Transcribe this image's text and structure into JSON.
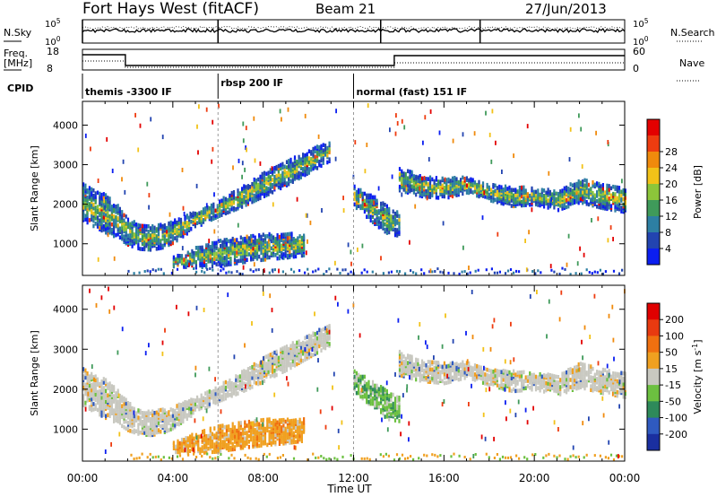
{
  "header": {
    "station": "Fort Hays West (fitACF)",
    "beam": "Beam 21",
    "date": "27/Jun/2013"
  },
  "noise_panel": {
    "left_label": "N.Sky",
    "right_label": "N.Search",
    "left_ticks": [
      "10^5",
      "10^0"
    ],
    "right_ticks": [
      "10^5",
      "10^0"
    ]
  },
  "freq_panel": {
    "left_label_1": "Freq.",
    "left_label_2": "[MHz]",
    "right_label": "Nave",
    "left_ticks": [
      "18",
      "8"
    ],
    "right_ticks": [
      "60",
      "0"
    ]
  },
  "cpid": {
    "label": "CPID",
    "segments": [
      {
        "text": "themis -3300 IF",
        "start": 0,
        "end": 6
      },
      {
        "text": "rbsp 200 IF",
        "start": 6,
        "end": 12
      },
      {
        "text": "normal (fast) 151 IF",
        "start": 12,
        "end": 24
      }
    ]
  },
  "chart_data": [
    {
      "type": "heatmap",
      "title": "Power",
      "ylabel": "Slant Range [km]",
      "xlabel": "Time UT",
      "xlim": [
        0,
        24
      ],
      "ylim": [
        200,
        4600
      ],
      "yticks": [
        1000,
        2000,
        3000,
        4000
      ],
      "xticks": [
        "00:00",
        "04:00",
        "08:00",
        "12:00",
        "16:00",
        "20:00",
        "00:00"
      ],
      "colorbar": {
        "label": "Power [dB]",
        "ticks": [
          "4",
          "8",
          "12",
          "16",
          "20",
          "24",
          "28"
        ],
        "colors": [
          "#0b1ef0",
          "#2244b0",
          "#2d7fa3",
          "#3f9a5a",
          "#8cc63a",
          "#f2c218",
          "#f08a0c",
          "#ee3c10",
          "#e30000"
        ]
      },
      "bands": [
        {
          "name": "main",
          "x": [
            0,
            0.5,
            1,
            1.5,
            2,
            2.5,
            3,
            3.5,
            4,
            5,
            6,
            7,
            8,
            9,
            10,
            10.9
          ],
          "y": [
            2050,
            1880,
            1760,
            1580,
            1320,
            1170,
            1150,
            1200,
            1310,
            1620,
            1900,
            2180,
            2500,
            2780,
            3080,
            3350
          ],
          "width": [
            450,
            450,
            480,
            420,
            350,
            300,
            300,
            300,
            280,
            200,
            200,
            250,
            300,
            300,
            280,
            260
          ]
        },
        {
          "name": "lower",
          "x": [
            4,
            5,
            6,
            7,
            8,
            9,
            9.8
          ],
          "y": [
            550,
            650,
            760,
            850,
            920,
            950,
            990
          ],
          "width": [
            120,
            250,
            320,
            320,
            320,
            300,
            280
          ]
        },
        {
          "name": "post_noon",
          "x": [
            12,
            12.5,
            13,
            13.5,
            14
          ],
          "y": [
            2200,
            2000,
            1800,
            1600,
            1500
          ],
          "width": [
            250,
            300,
            350,
            350,
            300
          ]
        },
        {
          "name": "afternoon",
          "x": [
            14,
            15,
            16,
            17,
            18,
            19,
            20,
            21,
            22,
            23,
            24
          ],
          "y": [
            2650,
            2450,
            2400,
            2500,
            2300,
            2200,
            2200,
            2100,
            2350,
            2200,
            2100
          ],
          "width": [
            300,
            250,
            250,
            200,
            200,
            250,
            200,
            250,
            300,
            300,
            300
          ]
        }
      ]
    },
    {
      "type": "heatmap",
      "title": "Velocity",
      "ylabel": "Slant Range [km]",
      "xlabel": "Time UT",
      "xlim": [
        0,
        24
      ],
      "ylim": [
        200,
        4600
      ],
      "yticks": [
        1000,
        2000,
        3000,
        4000
      ],
      "xticks": [
        "00:00",
        "04:00",
        "08:00",
        "12:00",
        "16:00",
        "20:00",
        "00:00"
      ],
      "colorbar": {
        "label": "Velocity [m s^-1]",
        "ticks": [
          "200",
          "100",
          "50",
          "15",
          "-15",
          "-50",
          "-100",
          "-200"
        ],
        "colors": [
          "#1a2fa0",
          "#2f5ac0",
          "#2e8a5a",
          "#6cc040",
          "#c8c8c0",
          "#f0a020",
          "#f07010",
          "#e83a10",
          "#e00000"
        ]
      }
    }
  ]
}
